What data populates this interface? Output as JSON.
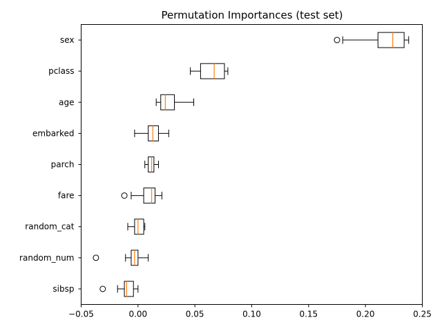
{
  "chart_data": {
    "type": "boxplot",
    "orientation": "horizontal",
    "title": "Permutation Importances (test set)",
    "xlabel": "",
    "ylabel": "",
    "xlim": [
      -0.05,
      0.25
    ],
    "xticks": [
      "−0.05",
      "0.00",
      "0.05",
      "0.10",
      "0.15",
      "0.20",
      "0.25"
    ],
    "xtick_values": [
      -0.05,
      0.0,
      0.05,
      0.1,
      0.15,
      0.2,
      0.25
    ],
    "grid": false,
    "colors": {
      "box": "#000000",
      "median": "#ff7f0e",
      "flier": "#000000"
    },
    "categories": [
      "sex",
      "pclass",
      "age",
      "embarked",
      "parch",
      "fare",
      "random_cat",
      "random_num",
      "sibsp"
    ],
    "boxes": [
      {
        "label": "sex",
        "whislo": 0.18,
        "q1": 0.211,
        "med": 0.224,
        "q3": 0.234,
        "whishi": 0.238,
        "fliers": [
          0.175
        ]
      },
      {
        "label": "pclass",
        "whislo": 0.046,
        "q1": 0.055,
        "med": 0.067,
        "q3": 0.076,
        "whishi": 0.079,
        "fliers": []
      },
      {
        "label": "age",
        "whislo": 0.016,
        "q1": 0.02,
        "med": 0.024,
        "q3": 0.032,
        "whishi": 0.049,
        "fliers": []
      },
      {
        "label": "embarked",
        "whislo": -0.003,
        "q1": 0.009,
        "med": 0.013,
        "q3": 0.018,
        "whishi": 0.027,
        "fliers": []
      },
      {
        "label": "parch",
        "whislo": 0.006,
        "q1": 0.009,
        "med": 0.012,
        "q3": 0.014,
        "whishi": 0.018,
        "fliers": []
      },
      {
        "label": "fare",
        "whislo": -0.006,
        "q1": 0.005,
        "med": 0.012,
        "q3": 0.015,
        "whishi": 0.021,
        "fliers": [
          -0.012
        ]
      },
      {
        "label": "random_cat",
        "whislo": -0.009,
        "q1": -0.003,
        "med": 0.0,
        "q3": 0.005,
        "whishi": 0.006,
        "fliers": []
      },
      {
        "label": "random_num",
        "whislo": -0.011,
        "q1": -0.006,
        "med": -0.003,
        "q3": 0.0,
        "whishi": 0.009,
        "fliers": [
          -0.037
        ]
      },
      {
        "label": "sibsp",
        "whislo": -0.018,
        "q1": -0.012,
        "med": -0.01,
        "q3": -0.004,
        "whishi": 0.0,
        "fliers": [
          -0.031
        ]
      }
    ]
  }
}
